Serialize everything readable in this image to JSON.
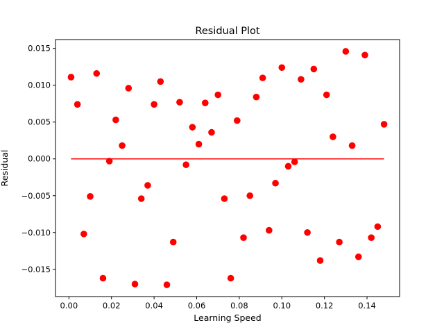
{
  "chart_data": {
    "type": "scatter",
    "title": "Residual Plot",
    "xlabel": "Learning Speed",
    "ylabel": "Residual",
    "xlim": [
      -0.0063,
      0.1553
    ],
    "ylim": [
      -0.0187,
      0.0162
    ],
    "xticks": [
      0.0,
      0.02,
      0.04,
      0.06,
      0.08,
      0.1,
      0.12,
      0.14
    ],
    "xtick_labels": [
      "0.00",
      "0.02",
      "0.04",
      "0.06",
      "0.08",
      "0.10",
      "0.12",
      "0.14"
    ],
    "yticks": [
      -0.015,
      -0.01,
      -0.005,
      0.0,
      0.005,
      0.01,
      0.015
    ],
    "ytick_labels": [
      "−0.015",
      "−0.010",
      "−0.005",
      "0.000",
      "0.005",
      "0.010",
      "0.015"
    ],
    "grid": false,
    "marker_color": "#ff0000",
    "line_color": "#ff0000",
    "zero_line": {
      "y": 0.0,
      "x_start": 0.001,
      "x_end": 0.148
    },
    "points": [
      {
        "x": 0.001,
        "y": 0.0111
      },
      {
        "x": 0.004,
        "y": 0.0074
      },
      {
        "x": 0.007,
        "y": -0.0102
      },
      {
        "x": 0.01,
        "y": -0.0051
      },
      {
        "x": 0.013,
        "y": 0.0116
      },
      {
        "x": 0.016,
        "y": -0.0162
      },
      {
        "x": 0.019,
        "y": -0.0003
      },
      {
        "x": 0.022,
        "y": 0.0053
      },
      {
        "x": 0.025,
        "y": 0.0018
      },
      {
        "x": 0.028,
        "y": 0.0096
      },
      {
        "x": 0.031,
        "y": -0.017
      },
      {
        "x": 0.034,
        "y": -0.0054
      },
      {
        "x": 0.037,
        "y": -0.0036
      },
      {
        "x": 0.04,
        "y": 0.0074
      },
      {
        "x": 0.043,
        "y": 0.0105
      },
      {
        "x": 0.046,
        "y": -0.0171
      },
      {
        "x": 0.049,
        "y": -0.0113
      },
      {
        "x": 0.052,
        "y": 0.0077
      },
      {
        "x": 0.055,
        "y": -0.0008
      },
      {
        "x": 0.058,
        "y": 0.0043
      },
      {
        "x": 0.061,
        "y": 0.002
      },
      {
        "x": 0.064,
        "y": 0.0076
      },
      {
        "x": 0.067,
        "y": 0.0036
      },
      {
        "x": 0.07,
        "y": 0.0087
      },
      {
        "x": 0.073,
        "y": -0.0054
      },
      {
        "x": 0.076,
        "y": -0.0162
      },
      {
        "x": 0.079,
        "y": 0.0052
      },
      {
        "x": 0.082,
        "y": -0.0107
      },
      {
        "x": 0.085,
        "y": -0.005
      },
      {
        "x": 0.088,
        "y": 0.0084
      },
      {
        "x": 0.091,
        "y": 0.011
      },
      {
        "x": 0.094,
        "y": -0.0097
      },
      {
        "x": 0.097,
        "y": -0.0033
      },
      {
        "x": 0.1,
        "y": 0.0124
      },
      {
        "x": 0.103,
        "y": -0.001
      },
      {
        "x": 0.106,
        "y": -0.0004
      },
      {
        "x": 0.109,
        "y": 0.0108
      },
      {
        "x": 0.112,
        "y": -0.01
      },
      {
        "x": 0.115,
        "y": 0.0122
      },
      {
        "x": 0.118,
        "y": -0.0138
      },
      {
        "x": 0.121,
        "y": 0.0087
      },
      {
        "x": 0.124,
        "y": 0.003
      },
      {
        "x": 0.127,
        "y": -0.0113
      },
      {
        "x": 0.13,
        "y": 0.0146
      },
      {
        "x": 0.133,
        "y": 0.0018
      },
      {
        "x": 0.136,
        "y": -0.0133
      },
      {
        "x": 0.139,
        "y": 0.0141
      },
      {
        "x": 0.142,
        "y": -0.0107
      },
      {
        "x": 0.145,
        "y": -0.0092
      },
      {
        "x": 0.148,
        "y": 0.0047
      }
    ]
  }
}
